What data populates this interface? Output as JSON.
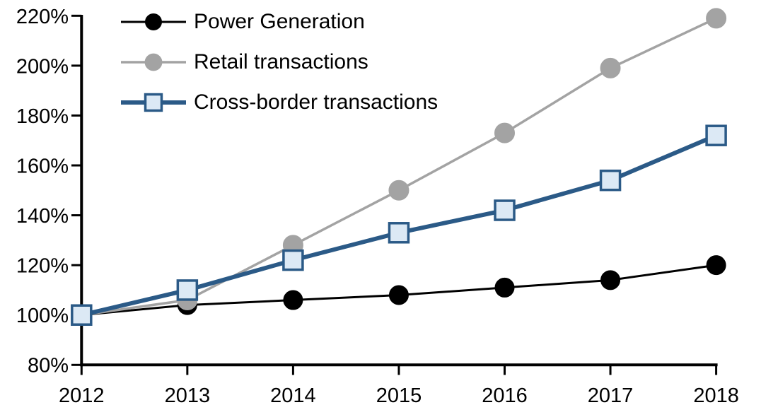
{
  "chart_data": {
    "type": "line",
    "title": "",
    "xlabel": "",
    "ylabel": "",
    "ylim": [
      80,
      220
    ],
    "y_tick_step": 20,
    "y_ticks": [
      "80%",
      "100%",
      "120%",
      "140%",
      "160%",
      "180%",
      "200%",
      "220%"
    ],
    "x_ticks": [
      "2012",
      "2013",
      "2014",
      "2015",
      "2016",
      "2017",
      "2018"
    ],
    "categories": [
      2012,
      2013,
      2014,
      2015,
      2016,
      2017,
      2018
    ],
    "grid": false,
    "legend_position": "top-left",
    "axis_color": "#000000",
    "series": [
      {
        "name": "Power Generation",
        "values": [
          100,
          104,
          106,
          108,
          111,
          114,
          120
        ],
        "line_color": "#000000",
        "line_width": 3,
        "marker": "circle",
        "marker_fill": "#000000",
        "marker_stroke": "#000000",
        "marker_size": 27
      },
      {
        "name": "Retail transactions",
        "values": [
          100,
          106,
          128,
          150,
          173,
          199,
          219
        ],
        "line_color": "#A3A3A3",
        "line_width": 3.5,
        "marker": "circle",
        "marker_fill": "#A3A3A3",
        "marker_stroke": "#A3A3A3",
        "marker_size": 28
      },
      {
        "name": "Cross-border transactions",
        "values": [
          100,
          110,
          122,
          133,
          142,
          154,
          172
        ],
        "line_color": "#2B5A87",
        "line_width": 6,
        "marker": "square",
        "marker_fill": "#DCE9F5",
        "marker_stroke": "#2B5A87",
        "marker_size": 27
      }
    ]
  }
}
